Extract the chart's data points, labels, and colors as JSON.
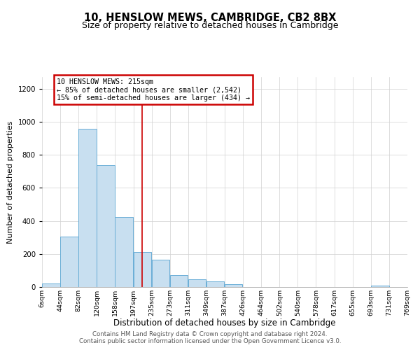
{
  "title": "10, HENSLOW MEWS, CAMBRIDGE, CB2 8BX",
  "subtitle": "Size of property relative to detached houses in Cambridge",
  "xlabel": "Distribution of detached houses by size in Cambridge",
  "ylabel": "Number of detached properties",
  "bar_left_edges": [
    6,
    44,
    82,
    120,
    158,
    197,
    235,
    273,
    311,
    349,
    387,
    426,
    464,
    502,
    540,
    578,
    617,
    655,
    693,
    731
  ],
  "bar_heights": [
    20,
    305,
    955,
    735,
    425,
    210,
    165,
    70,
    48,
    33,
    18,
    0,
    0,
    0,
    0,
    0,
    0,
    0,
    10,
    0
  ],
  "bin_width": 38,
  "bar_color": "#c8dff0",
  "bar_edge_color": "#6aaed6",
  "bar_linewidth": 0.7,
  "vline_x": 215,
  "vline_color": "#cc0000",
  "vline_linewidth": 1.2,
  "annotation_title": "10 HENSLOW MEWS: 215sqm",
  "annotation_line1": "← 85% of detached houses are smaller (2,542)",
  "annotation_line2": "15% of semi-detached houses are larger (434) →",
  "ylim": [
    0,
    1270
  ],
  "xlim": [
    6,
    769
  ],
  "tick_labels": [
    "6sqm",
    "44sqm",
    "82sqm",
    "120sqm",
    "158sqm",
    "197sqm",
    "235sqm",
    "273sqm",
    "311sqm",
    "349sqm",
    "387sqm",
    "426sqm",
    "464sqm",
    "502sqm",
    "540sqm",
    "578sqm",
    "617sqm",
    "655sqm",
    "693sqm",
    "731sqm",
    "769sqm"
  ],
  "tick_positions": [
    6,
    44,
    82,
    120,
    158,
    197,
    235,
    273,
    311,
    349,
    387,
    426,
    464,
    502,
    540,
    578,
    617,
    655,
    693,
    731,
    769
  ],
  "ytick_positions": [
    0,
    200,
    400,
    600,
    800,
    1000,
    1200
  ],
  "footer1": "Contains HM Land Registry data © Crown copyright and database right 2024.",
  "footer2": "Contains public sector information licensed under the Open Government Licence v3.0.",
  "title_fontsize": 10.5,
  "subtitle_fontsize": 9,
  "xlabel_fontsize": 8.5,
  "ylabel_fontsize": 8,
  "tick_fontsize": 6.8,
  "footer_fontsize": 6.2,
  "grid_color": "#d0d0d0"
}
